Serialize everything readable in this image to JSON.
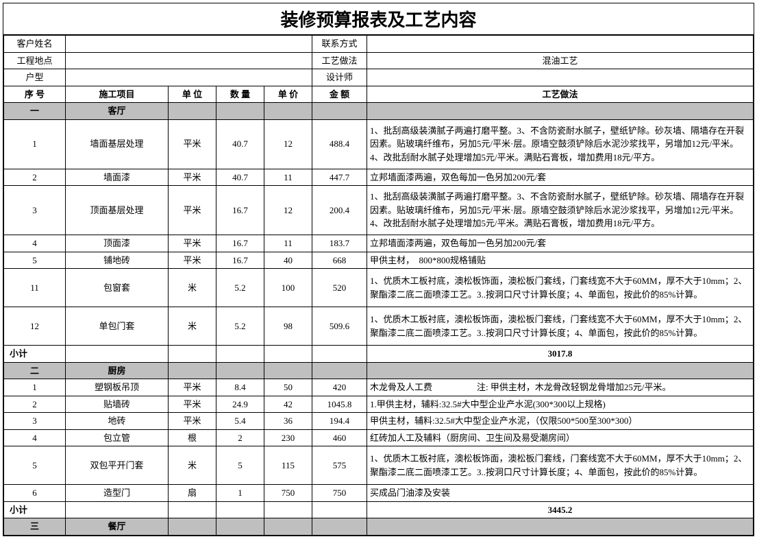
{
  "title": "装修预算报表及工艺内容",
  "info": {
    "customer_label": "客户姓名",
    "customer_val": "",
    "contact_label": "联系方式",
    "contact_val": "",
    "project_loc_label": "工程地点",
    "project_loc_val": "",
    "process_label": "工艺做法",
    "process_val": "混油工艺",
    "house_type_label": "户型",
    "house_type_val": "",
    "designer_label": "设计师",
    "designer_val": ""
  },
  "columns": {
    "seq": "序 号",
    "item": "施工项目",
    "unit": "单 位",
    "qty": "数 量",
    "price": "单 价",
    "amount": "金 额",
    "process": "工艺做法"
  },
  "sections": [
    {
      "seq": "一",
      "name": "客厅",
      "rows": [
        {
          "seq": "1",
          "item": "墙面基层处理",
          "unit": "平米",
          "qty": "40.7",
          "price": "12",
          "amount": "488.4",
          "process": "1、批刮高级装潢腻子两遍打磨平整。3、不含防瓷耐水腻子，壁纸铲除。砂灰墙、隔墙存在开裂因素。贴玻璃纤维布，另加5元/平米·层。原墙空鼓须铲除后水泥沙浆找平，另增加12元/平米。4、改批刮耐水腻子处理增加5元/平米。满贴石膏板，增加费用18元/平方。",
          "tall": true
        },
        {
          "seq": "2",
          "item": "墙面漆",
          "unit": "平米",
          "qty": "40.7",
          "price": "11",
          "amount": "447.7",
          "process": "立邦墙面漆两遍，双色每加一色另加200元/套"
        },
        {
          "seq": "3",
          "item": "顶面基层处理",
          "unit": "平米",
          "qty": "16.7",
          "price": "12",
          "amount": "200.4",
          "process": "1、批刮高级装潢腻子两遍打磨平整。3、不含防瓷耐水腻子，壁纸铲除。砂灰墙、隔墙存在开裂因素。贴玻璃纤维布，另加5元/平米·层。原墙空鼓须铲除后水泥沙浆找平，另增加12元/平米。4、改批刮耐水腻子处理增加5元/平米。满贴石膏板，增加费用18元/平方。",
          "tall": true
        },
        {
          "seq": "4",
          "item": "顶面漆",
          "unit": "平米",
          "qty": "16.7",
          "price": "11",
          "amount": "183.7",
          "process": "立邦墙面漆两遍，双色每加一色另加200元/套"
        },
        {
          "seq": "5",
          "item": "铺地砖",
          "unit": "平米",
          "qty": "16.7",
          "price": "40",
          "amount": "668",
          "process": "甲供主材，　800*800规格铺贴"
        },
        {
          "seq": "11",
          "item": "包窗套",
          "unit": "米",
          "qty": "5.2",
          "price": "100",
          "amount": "520",
          "process": "1、优质木工板衬底，澳松板饰面，澳松板门套线，门套线宽不大于60MM，厚不大于10mm；2、聚酯漆二底二面喷漆工艺。3..按洞口尺寸计算长度；4、单面包，按此价的85%计算。",
          "tall3": true
        },
        {
          "seq": "12",
          "item": "单包门套",
          "unit": "米",
          "qty": "5.2",
          "price": "98",
          "amount": "509.6",
          "process": "1、优质木工板衬底，澳松板饰面，澳松板门套线，门套线宽不大于60MM，厚不大于10mm；2、聚酯漆二底二面喷漆工艺。3..按洞口尺寸计算长度；4、单面包，按此价的85%计算。",
          "tall3": true
        }
      ],
      "subtotal_label": "小计",
      "subtotal": "3017.8"
    },
    {
      "seq": "二",
      "name": "厨房",
      "rows": [
        {
          "seq": "1",
          "item": "塑钢板吊顶",
          "unit": "平米",
          "qty": "8.4",
          "price": "50",
          "amount": "420",
          "process": "木龙骨及人工费　　　　　注:  甲供主材，木龙骨改轻钢龙骨增加25元/平米。"
        },
        {
          "seq": "2",
          "item": "贴墙砖",
          "unit": "平米",
          "qty": "24.9",
          "price": "42",
          "amount": "1045.8",
          "process": "1.甲供主材，辅料:32.5#大中型企业产水泥(300*300以上规格)"
        },
        {
          "seq": "3",
          "item": "地砖",
          "unit": "平米",
          "qty": "5.4",
          "price": "36",
          "amount": "194.4",
          "process": "甲供主材，辅料:32.5#大中型企业产水泥，（仅限500*500至300*300）"
        },
        {
          "seq": "4",
          "item": "包立管",
          "unit": "根",
          "qty": "2",
          "price": "230",
          "amount": "460",
          "process": "红砖加人工及辅料（厨房间、卫生间及易受潮房间）"
        },
        {
          "seq": "5",
          "item": "双包平开门套",
          "unit": "米",
          "qty": "5",
          "price": "115",
          "amount": "575",
          "process": "1、优质木工板衬底，澳松板饰面，澳松板门套线，门套线宽不大于60MM，厚不大于10mm；2、聚酯漆二底二面喷漆工艺。3..按洞口尺寸计算长度；4、单面包，按此价的85%计算。",
          "tall3": true
        },
        {
          "seq": "6",
          "item": "造型门",
          "unit": "扇",
          "qty": "1",
          "price": "750",
          "amount": "750",
          "process": "买成品门油漆及安装"
        }
      ],
      "subtotal_label": "小计",
      "subtotal": "3445.2"
    },
    {
      "seq": "三",
      "name": "餐厅",
      "rows": [],
      "subtotal_label": "",
      "subtotal": ""
    }
  ]
}
